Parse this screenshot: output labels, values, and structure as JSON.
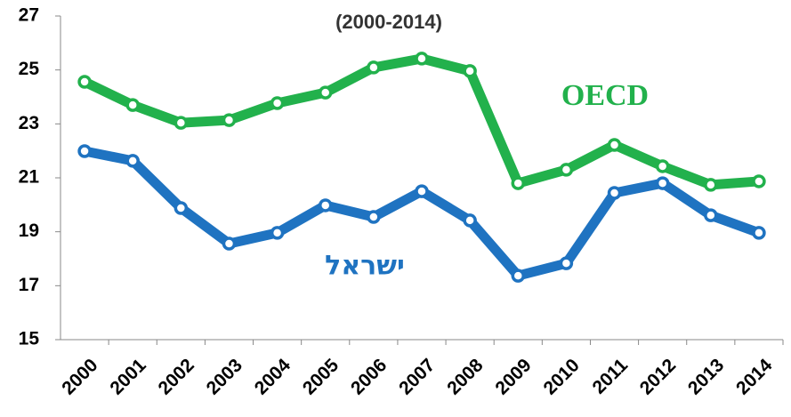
{
  "chart_data": {
    "type": "line",
    "title": "(2000-2014)",
    "categories": [
      "2000",
      "2001",
      "2002",
      "2003",
      "2004",
      "2005",
      "2006",
      "2007",
      "2008",
      "2009",
      "2010",
      "2011",
      "2012",
      "2013",
      "2014"
    ],
    "series": [
      {
        "name": "OECD",
        "color": "#22b14c",
        "values": [
          24.56,
          23.7,
          23.04,
          23.14,
          23.77,
          24.16,
          25.09,
          25.42,
          24.96,
          20.8,
          21.3,
          22.22,
          21.43,
          20.74,
          20.87
        ]
      },
      {
        "name": "ישראל",
        "color": "#1f73c1",
        "values": [
          21.99,
          21.63,
          19.88,
          18.56,
          18.96,
          19.98,
          19.55,
          20.5,
          19.42,
          17.37,
          17.83,
          20.44,
          20.8,
          19.61,
          18.96
        ]
      }
    ],
    "ylim": [
      15,
      27
    ],
    "yticks": [
      15,
      17,
      19,
      21,
      23,
      25,
      27
    ]
  }
}
